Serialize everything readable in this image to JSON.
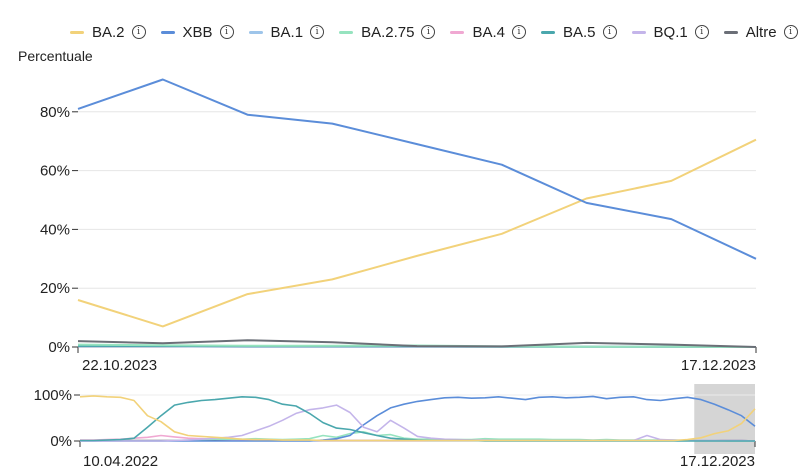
{
  "legend": [
    {
      "name": "BA.2",
      "color": "#f2d27a"
    },
    {
      "name": "XBB",
      "color": "#5b8dd9"
    },
    {
      "name": "BA.1",
      "color": "#9ec5ea"
    },
    {
      "name": "BA.2.75",
      "color": "#96e3bf"
    },
    {
      "name": "BA.4",
      "color": "#f0a8d2"
    },
    {
      "name": "BA.5",
      "color": "#4aa7ad"
    },
    {
      "name": "BQ.1",
      "color": "#c4b5ea"
    },
    {
      "name": "Altre",
      "color": "#6b6f77"
    }
  ],
  "info_glyph": "ⓘ",
  "chart_data": [
    {
      "type": "line",
      "ylabel": "Percentuale",
      "ylim": [
        0,
        100
      ],
      "yticks": [
        "0%",
        "20%",
        "40%",
        "60%",
        "80%"
      ],
      "ytick_values": [
        0,
        20,
        40,
        60,
        80
      ],
      "x_start_label": "22.10.2023",
      "x_end_label": "17.12.2023",
      "x": [
        0,
        1,
        2,
        3,
        4,
        5,
        6,
        7,
        8
      ],
      "series": [
        {
          "name": "XBB",
          "color": "#5b8dd9",
          "values": [
            81,
            91,
            79,
            76,
            69,
            62,
            49,
            43.5,
            30
          ]
        },
        {
          "name": "BA.2",
          "color": "#f2d27a",
          "values": [
            16,
            7,
            18,
            23,
            31,
            38.5,
            50.5,
            56.5,
            70.5
          ]
        },
        {
          "name": "Altre",
          "color": "#6b6f77",
          "values": [
            2,
            1.3,
            2.3,
            1.6,
            0.3,
            0.2,
            1.4,
            0.8,
            0
          ]
        },
        {
          "name": "BA.2.75",
          "color": "#96e3bf",
          "values": [
            0.8,
            0.6,
            0.4,
            0.4,
            0.5,
            0.2,
            0.1,
            0.1,
            0
          ]
        },
        {
          "name": "BA.5",
          "color": "#4aa7ad",
          "values": [
            0.3,
            0.3,
            0.2,
            0.2,
            0.2,
            0.1,
            0.1,
            0.1,
            0
          ]
        },
        {
          "name": "BQ.1",
          "color": "#c4b5ea",
          "values": [
            0.2,
            0.2,
            0.1,
            0.1,
            0.1,
            0.1,
            0.1,
            0,
            0
          ]
        }
      ]
    },
    {
      "type": "line",
      "role": "overview-navigator",
      "ylim": [
        0,
        100
      ],
      "yticks": [
        "0%",
        "100%"
      ],
      "ytick_values": [
        0,
        100
      ],
      "x_start_label": "10.04.2022",
      "x_end_label": "17.12.2023",
      "selected_range": "22.10.2023 – 17.12.2023",
      "selection_start_fraction": 0.91,
      "x": [
        0,
        2,
        4,
        6,
        8,
        10,
        12,
        14,
        16,
        18,
        20,
        22,
        24,
        26,
        28,
        30,
        32,
        34,
        36,
        38,
        40,
        42,
        44,
        46,
        48,
        50,
        52,
        54,
        56,
        58,
        60,
        62,
        64,
        66,
        68,
        70,
        72,
        74,
        76,
        78,
        80,
        82,
        84,
        86,
        88,
        90,
        92,
        94,
        96,
        98,
        100
      ],
      "series": [
        {
          "name": "BA.2",
          "color": "#f2d27a",
          "values": [
            96,
            98,
            96,
            95,
            88,
            55,
            42,
            20,
            12,
            10,
            8,
            6,
            4,
            3,
            3,
            2,
            2,
            2,
            1,
            1,
            1,
            1,
            1,
            1,
            1,
            1,
            1,
            1,
            1,
            1,
            1,
            1,
            1,
            1,
            1,
            1,
            1,
            1,
            1,
            1,
            1,
            1,
            1,
            1,
            1,
            3,
            7,
            16,
            22,
            38,
            70
          ]
        },
        {
          "name": "BA.5",
          "color": "#4aa7ad",
          "values": [
            1,
            1,
            2,
            3,
            6,
            30,
            55,
            78,
            84,
            88,
            90,
            93,
            96,
            95,
            90,
            80,
            76,
            60,
            40,
            28,
            25,
            18,
            12,
            6,
            4,
            2,
            1,
            1,
            1,
            1,
            0,
            0,
            0,
            0,
            0,
            0,
            0,
            0,
            0,
            0,
            0,
            0,
            0,
            0,
            0,
            0,
            0,
            0,
            0,
            0,
            0
          ]
        },
        {
          "name": "BQ.1",
          "color": "#c4b5ea",
          "values": [
            0,
            0,
            0,
            0,
            0,
            0,
            0,
            1,
            2,
            4,
            6,
            8,
            12,
            22,
            32,
            45,
            60,
            68,
            72,
            78,
            62,
            30,
            20,
            45,
            28,
            10,
            6,
            4,
            3,
            2,
            2,
            1,
            1,
            1,
            1,
            1,
            1,
            1,
            1,
            1,
            1,
            1,
            12,
            3,
            2,
            1,
            1,
            1,
            1,
            1,
            0
          ]
        },
        {
          "name": "XBB",
          "color": "#5b8dd9",
          "values": [
            0,
            0,
            0,
            0,
            0,
            0,
            0,
            0,
            0,
            0,
            0,
            0,
            0,
            0,
            0,
            0,
            0,
            0,
            2,
            5,
            12,
            35,
            55,
            72,
            80,
            86,
            90,
            94,
            95,
            93,
            94,
            96,
            93,
            90,
            95,
            96,
            94,
            95,
            97,
            92,
            95,
            96,
            90,
            88,
            92,
            95,
            90,
            80,
            68,
            55,
            32
          ]
        },
        {
          "name": "BA.2.75",
          "color": "#96e3bf",
          "values": [
            0,
            0,
            0,
            0,
            0,
            0,
            0,
            1,
            2,
            3,
            4,
            4,
            4,
            5,
            4,
            3,
            4,
            5,
            12,
            8,
            16,
            20,
            12,
            14,
            6,
            4,
            4,
            3,
            3,
            3,
            5,
            4,
            4,
            4,
            4,
            3,
            3,
            3,
            2,
            3,
            2,
            2,
            2,
            2,
            2,
            1,
            1,
            1,
            0,
            0,
            0
          ]
        },
        {
          "name": "BA.4",
          "color": "#f0a8d2",
          "values": [
            2,
            2,
            3,
            4,
            6,
            8,
            12,
            9,
            6,
            5,
            4,
            3,
            2,
            2,
            1,
            1,
            1,
            1,
            1,
            1,
            1,
            1,
            1,
            1,
            1,
            1,
            1,
            1,
            1,
            1,
            1,
            1,
            1,
            1,
            1,
            1,
            1,
            1,
            1,
            1,
            1,
            1,
            1,
            1,
            1,
            1,
            1,
            1,
            0,
            0,
            0
          ]
        },
        {
          "name": "Altre",
          "color": "#6b6f77",
          "values": [
            1,
            1,
            1,
            1,
            1,
            1,
            1,
            1,
            1,
            1,
            1,
            1,
            1,
            1,
            1,
            1,
            1,
            1,
            1,
            1,
            1,
            1,
            1,
            1,
            1,
            1,
            1,
            1,
            1,
            1,
            1,
            1,
            1,
            1,
            1,
            1,
            1,
            1,
            1,
            1,
            1,
            1,
            1,
            1,
            1,
            1,
            1,
            1,
            1,
            1,
            0
          ]
        }
      ]
    }
  ]
}
